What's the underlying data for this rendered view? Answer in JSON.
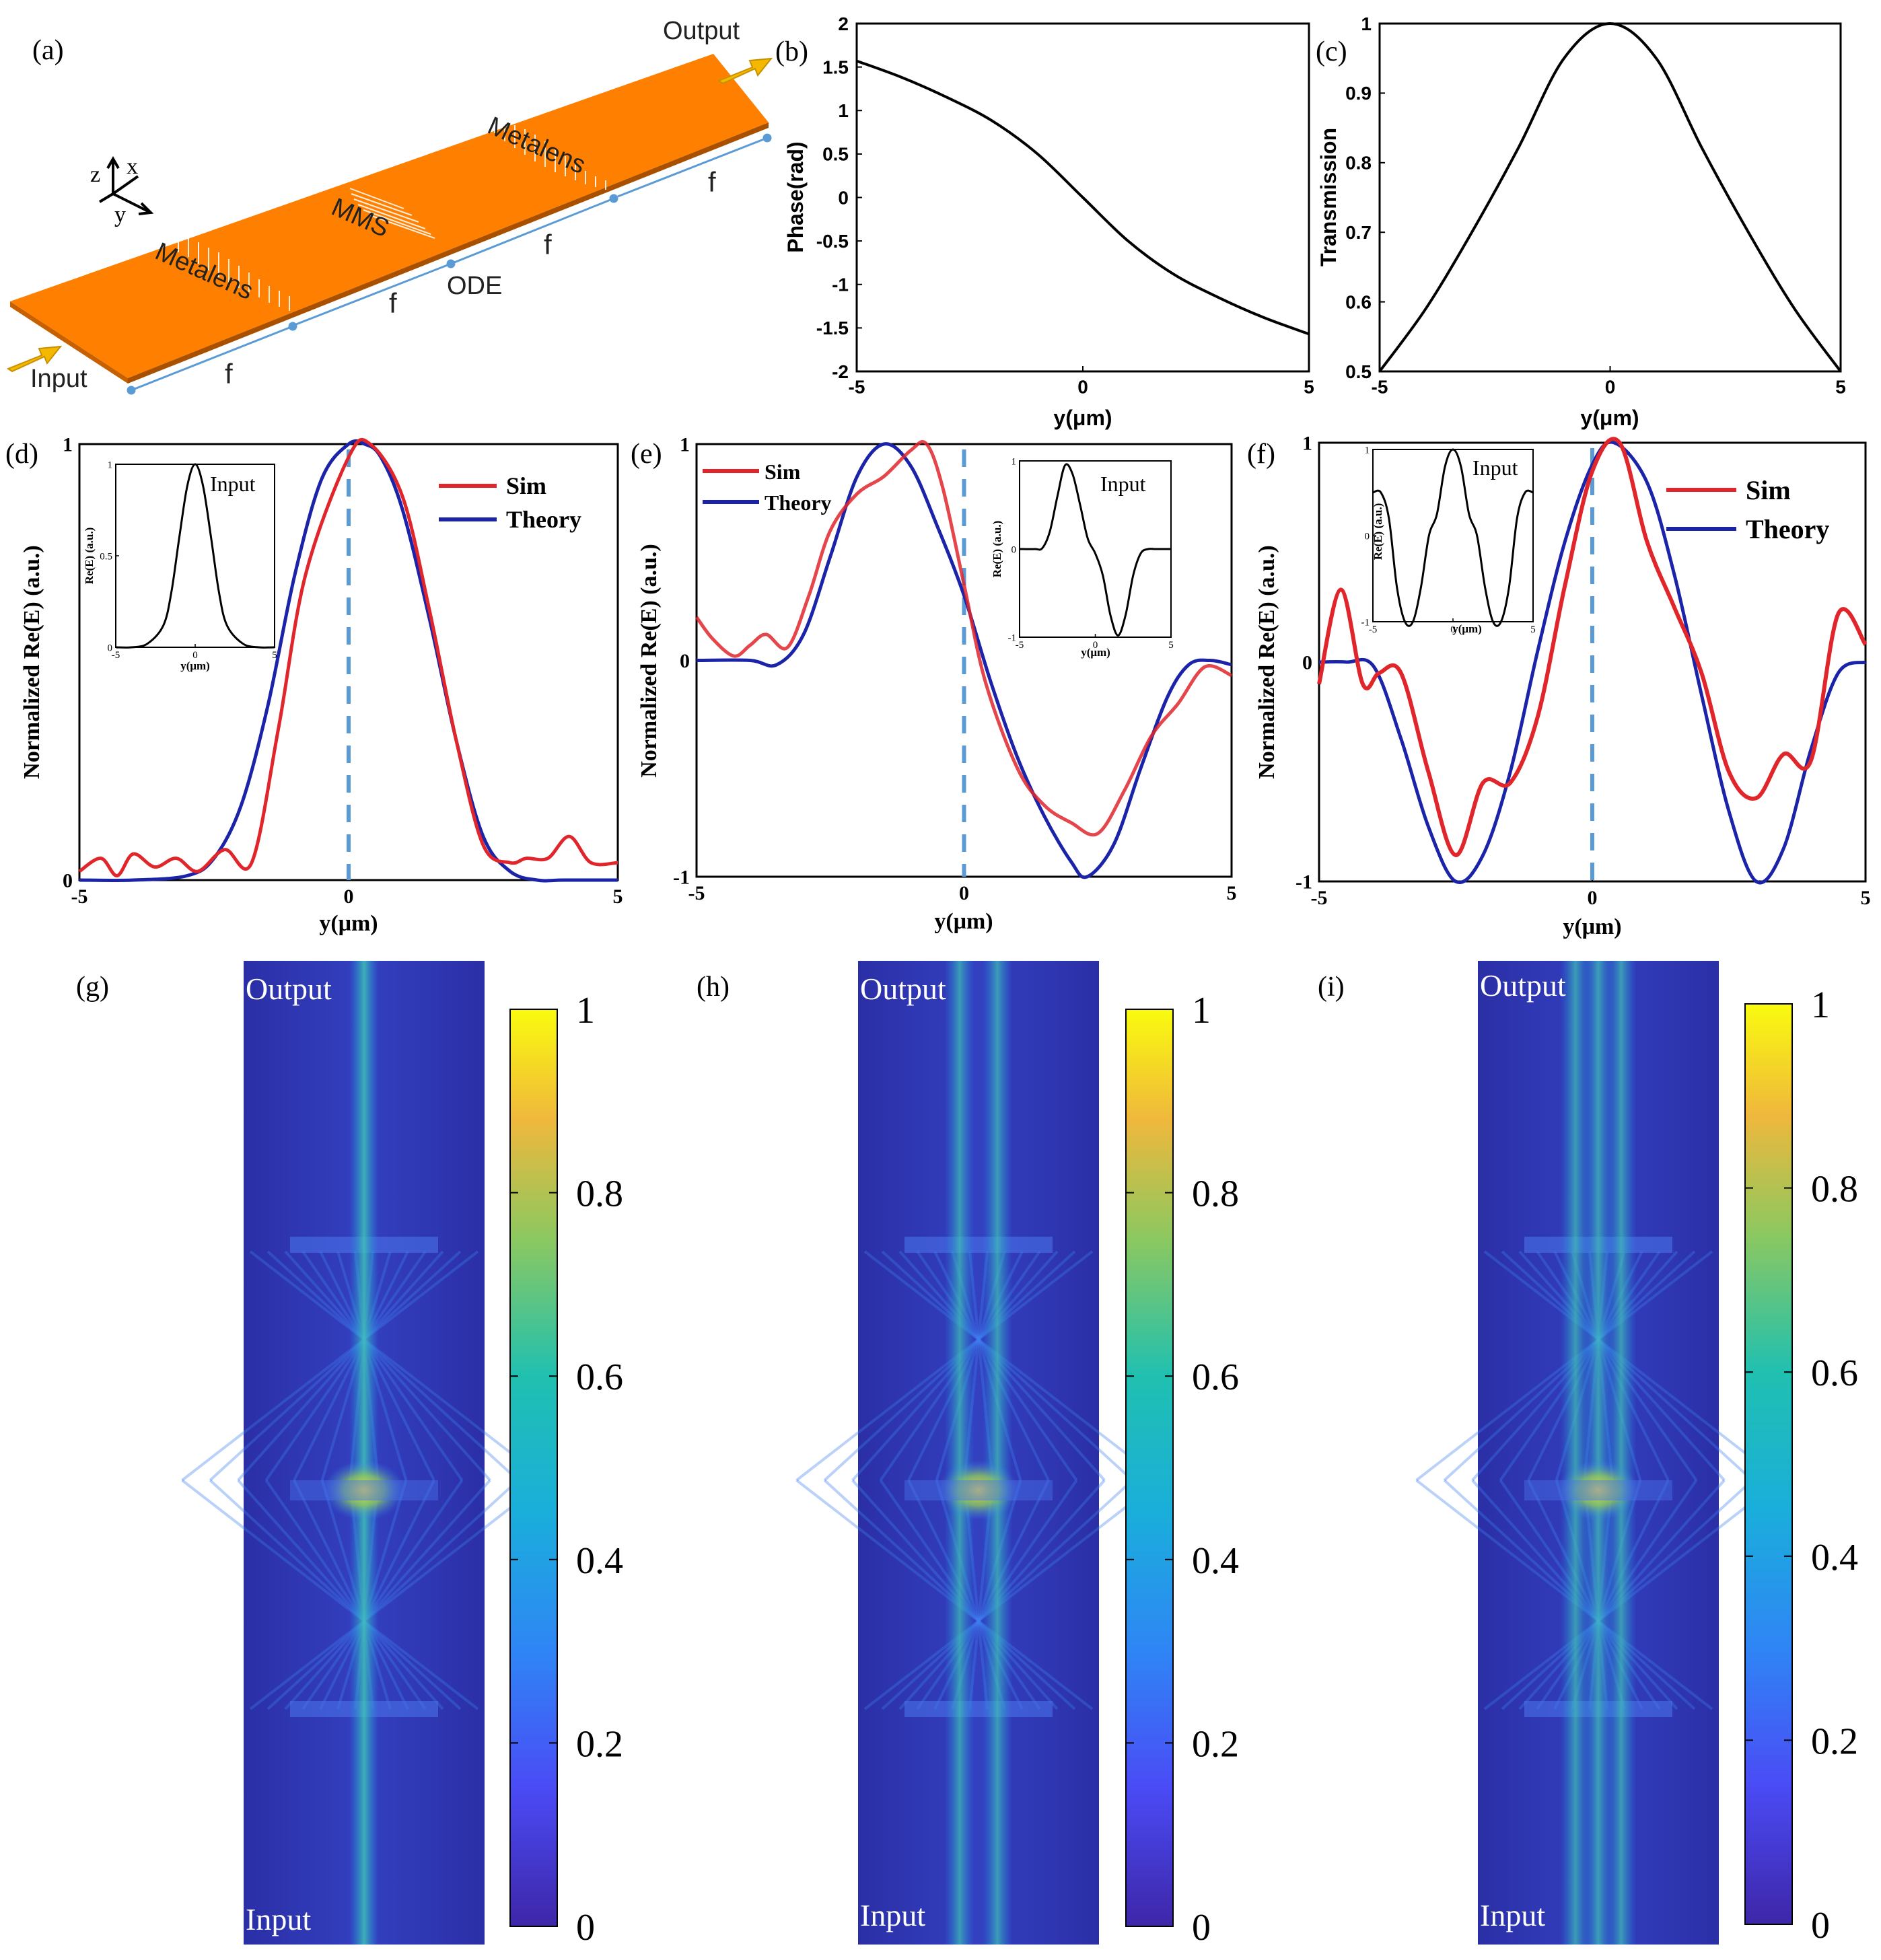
{
  "colors": {
    "sim": "#e0262b",
    "theory": "#1b24a8",
    "marker": "#5b9bd5",
    "plate": "#ff8000",
    "arrow": "#f5b800"
  },
  "panel_a": {
    "label": "(a)",
    "output_label": "Output",
    "input_label": "Input",
    "metalens_1": "Metalens",
    "metalens_2": "Metalens",
    "mms_label": "MMS",
    "ode_label": "ODE",
    "axis_z": "z",
    "axis_x": "x",
    "axis_y": "y",
    "f_labels": [
      "f",
      "f",
      "f",
      "f"
    ]
  },
  "chart_data": [
    {
      "panel": "(b)",
      "type": "line",
      "series_name": "Phase",
      "x": [
        -5,
        -4,
        -3,
        -2,
        -1,
        0,
        1,
        2,
        3,
        4,
        5
      ],
      "y": [
        1.57,
        1.38,
        1.15,
        0.88,
        0.5,
        0,
        -0.5,
        -0.88,
        -1.15,
        -1.38,
        -1.57
      ],
      "xlabel": "y(μm)",
      "ylabel": "Phase(rad)",
      "xlim": [
        -5,
        5
      ],
      "ylim": [
        -2,
        2
      ],
      "xticks": [
        "-5",
        "0",
        "5"
      ],
      "yticks": [
        "2",
        "1.5",
        "1",
        "0.5",
        "0",
        "-0.5",
        "-1",
        "-1.5",
        "-2"
      ]
    },
    {
      "panel": "(c)",
      "type": "line",
      "series_name": "Transmission",
      "x": [
        -5,
        -4,
        -3,
        -2,
        -1,
        0,
        1,
        2,
        3,
        4,
        5
      ],
      "y": [
        0.5,
        0.59,
        0.7,
        0.82,
        0.95,
        1.0,
        0.95,
        0.82,
        0.7,
        0.59,
        0.5
      ],
      "xlabel": "y(μm)",
      "ylabel": "Transmission",
      "xlim": [
        -5,
        5
      ],
      "ylim": [
        0.5,
        1
      ],
      "xticks": [
        "-5",
        "0",
        "5"
      ],
      "yticks": [
        "1",
        "0.9",
        "0.8",
        "0.7",
        "0.6",
        "0.5"
      ]
    },
    {
      "panel": "(d)",
      "type": "line",
      "xlabel": "y(μm)",
      "ylabel": "Normalized Re(E) (a.u.)",
      "xlim": [
        -5,
        5
      ],
      "ylim": [
        0,
        1
      ],
      "xticks": [
        "-5",
        "0",
        "5"
      ],
      "yticks": [
        "1",
        "0"
      ],
      "legend": [
        "Sim",
        "Theory"
      ],
      "legend_position": "top-right",
      "series": [
        {
          "name": "Sim",
          "x": [
            -5,
            -4.6,
            -4.3,
            -4,
            -3.6,
            -3.2,
            -2.8,
            -2.3,
            -1.8,
            -1.3,
            -0.8,
            0,
            0.4,
            1,
            1.5,
            2,
            2.5,
            3,
            3.3,
            3.7,
            4.1,
            4.5,
            5
          ],
          "y": [
            0.02,
            0.05,
            0.01,
            0.06,
            0.03,
            0.05,
            0.02,
            0.07,
            0.04,
            0.35,
            0.7,
            0.97,
            1.0,
            0.88,
            0.62,
            0.32,
            0.08,
            0.04,
            0.05,
            0.05,
            0.1,
            0.04,
            0.04
          ]
        },
        {
          "name": "Theory",
          "x": [
            -5,
            -4,
            -3,
            -2.5,
            -2,
            -1.5,
            -1,
            -0.5,
            0,
            0.3,
            0.6,
            1,
            1.5,
            2,
            2.5,
            3,
            3.5,
            4,
            5
          ],
          "y": [
            0,
            0,
            0.01,
            0.05,
            0.17,
            0.4,
            0.7,
            0.92,
            1.0,
            1.0,
            0.97,
            0.85,
            0.6,
            0.32,
            0.1,
            0.02,
            0,
            0,
            0
          ]
        }
      ],
      "inset": {
        "label": "Input",
        "ylabel": "Re(E) (a.u.)",
        "xlabel": "y(μm)",
        "xticks": [
          "-5",
          "0",
          "5"
        ],
        "yticks": [
          "1",
          "0.5",
          "0"
        ],
        "ylim": [
          0,
          1
        ],
        "x": [
          -5,
          -4,
          -3,
          -2,
          -1.5,
          -1,
          -0.5,
          0,
          0.5,
          1,
          1.5,
          2,
          3,
          4,
          5
        ],
        "y": [
          0,
          0,
          0.02,
          0.12,
          0.3,
          0.6,
          0.88,
          1.0,
          0.88,
          0.6,
          0.3,
          0.12,
          0.02,
          0,
          0
        ]
      }
    },
    {
      "panel": "(e)",
      "type": "line",
      "xlabel": "y(μm)",
      "ylabel": "Normalized Re(E) (a.u.)",
      "xlim": [
        -5,
        5
      ],
      "ylim": [
        -1,
        1
      ],
      "xticks": [
        "-5",
        "0",
        "5"
      ],
      "yticks": [
        "1",
        "0",
        "-1"
      ],
      "legend": [
        "Sim",
        "Theory"
      ],
      "legend_position": "top-left",
      "series": [
        {
          "name": "Sim",
          "x": [
            -5,
            -4.7,
            -4.3,
            -4,
            -3.7,
            -3.3,
            -2.9,
            -2.5,
            -2,
            -1.5,
            -1,
            -0.7,
            -0.4,
            0,
            0.4,
            1,
            1.5,
            2,
            2.5,
            3,
            3.5,
            4,
            4.5,
            5
          ],
          "y": [
            0.2,
            0.1,
            0.02,
            0.07,
            0.12,
            0.06,
            0.3,
            0.6,
            0.77,
            0.85,
            0.97,
            1.0,
            0.8,
            0.35,
            -0.1,
            -0.5,
            -0.67,
            -0.75,
            -0.8,
            -0.6,
            -0.35,
            -0.2,
            -0.03,
            -0.07
          ]
        },
        {
          "name": "Theory",
          "x": [
            -5,
            -4,
            -3.5,
            -3,
            -2.5,
            -2,
            -1.5,
            -1,
            -0.5,
            0,
            0.5,
            1,
            1.5,
            2,
            2.3,
            2.8,
            3.3,
            3.8,
            4.2,
            4.6,
            5
          ],
          "y": [
            0,
            0,
            -0.02,
            0.12,
            0.48,
            0.85,
            1.0,
            0.9,
            0.62,
            0.3,
            -0.1,
            -0.45,
            -0.72,
            -0.93,
            -1.0,
            -0.85,
            -0.5,
            -0.17,
            -0.02,
            0,
            -0.02
          ]
        }
      ],
      "inset": {
        "label": "Input",
        "ylabel": "Re(E) (a.u.)",
        "xlabel": "y(μm)",
        "xticks": [
          "-5",
          "0",
          "5"
        ],
        "yticks": [
          "1",
          "0",
          "-1"
        ],
        "ylim": [
          -1,
          1
        ],
        "x": [
          -5,
          -4,
          -3.5,
          -3,
          -2.5,
          -2,
          -1.5,
          -1,
          -0.5,
          0,
          0.5,
          1,
          1.5,
          2,
          2.5,
          3,
          3.5,
          4,
          5
        ],
        "y": [
          0,
          0,
          0.01,
          0.2,
          0.6,
          0.95,
          0.85,
          0.5,
          0.12,
          -0.05,
          -0.3,
          -0.75,
          -0.98,
          -0.75,
          -0.3,
          -0.05,
          0,
          0,
          0
        ]
      }
    },
    {
      "panel": "(f)",
      "type": "line",
      "xlabel": "y(μm)",
      "ylabel": "Normalized Re(E) (a.u.)",
      "xlim": [
        -5,
        5
      ],
      "ylim": [
        -1,
        1
      ],
      "xticks": [
        "-5",
        "0",
        "5"
      ],
      "yticks": [
        "1",
        "0",
        "-1"
      ],
      "legend": [
        "Sim",
        "Theory"
      ],
      "legend_position": "top-right",
      "series": [
        {
          "name": "Sim",
          "x": [
            -5,
            -4.6,
            -4.2,
            -3.9,
            -3.5,
            -3,
            -2.5,
            -2,
            -1.5,
            -1,
            -0.5,
            0,
            0.5,
            1,
            1.5,
            2,
            2.5,
            3,
            3.5,
            4,
            4.5,
            5
          ],
          "y": [
            -0.1,
            0.33,
            -0.1,
            -0.05,
            -0.05,
            -0.5,
            -0.88,
            -0.55,
            -0.55,
            -0.25,
            0.35,
            0.87,
            1.0,
            0.55,
            0.25,
            -0.05,
            -0.5,
            -0.62,
            -0.42,
            -0.45,
            0.22,
            0.08
          ]
        },
        {
          "name": "Theory",
          "x": [
            -5,
            -4.5,
            -4,
            -3.5,
            -3,
            -2.5,
            -2,
            -1.5,
            -1,
            -0.5,
            0,
            0.4,
            1,
            1.5,
            2,
            2.5,
            3,
            3.5,
            4,
            4.5,
            5
          ],
          "y": [
            0,
            0,
            -0.02,
            -0.35,
            -0.75,
            -1.0,
            -0.88,
            -0.5,
            0.05,
            0.55,
            0.9,
            1.0,
            0.82,
            0.4,
            -0.15,
            -0.68,
            -1.0,
            -0.85,
            -0.4,
            -0.05,
            0
          ]
        }
      ],
      "inset": {
        "label": "Input",
        "ylabel": "Re(E) (a.u.)",
        "xlabel": "y(μm)",
        "xticks": [
          "-5",
          "0",
          "5"
        ],
        "yticks": [
          "1",
          "0",
          "-1"
        ],
        "ylim": [
          -1,
          1
        ],
        "x": [
          -5,
          -4.5,
          -4,
          -3.5,
          -3,
          -2.5,
          -2,
          -1.5,
          -1,
          -0.5,
          0,
          0.5,
          1,
          1.5,
          2,
          2.5,
          3,
          3.5,
          4,
          4.5,
          5
        ],
        "y": [
          0.5,
          0.5,
          0.2,
          -0.6,
          -1.0,
          -1.0,
          -0.6,
          0.0,
          0.25,
          0.8,
          1.0,
          0.8,
          0.25,
          0.0,
          -0.6,
          -1.0,
          -1.0,
          -0.6,
          0.2,
          0.5,
          0.5
        ]
      }
    },
    {
      "panel": "(g)",
      "type": "heatmap",
      "top_label": "Output",
      "bottom_label": "Input",
      "colorbar_ticks": [
        "1",
        "0.8",
        "0.6",
        "0.4",
        "0.2",
        "0"
      ],
      "colorbar_range": [
        0,
        1
      ]
    },
    {
      "panel": "(h)",
      "type": "heatmap",
      "top_label": "Output",
      "bottom_label": "Input",
      "colorbar_ticks": [
        "1",
        "0.8",
        "0.6",
        "0.4",
        "0.2",
        "0"
      ],
      "colorbar_range": [
        0,
        1
      ]
    },
    {
      "panel": "(i)",
      "type": "heatmap",
      "top_label": "Output",
      "bottom_label": "Input",
      "colorbar_ticks": [
        "1",
        "0.8",
        "0.6",
        "0.4",
        "0.2",
        "0"
      ],
      "colorbar_range": [
        0,
        1
      ]
    }
  ]
}
